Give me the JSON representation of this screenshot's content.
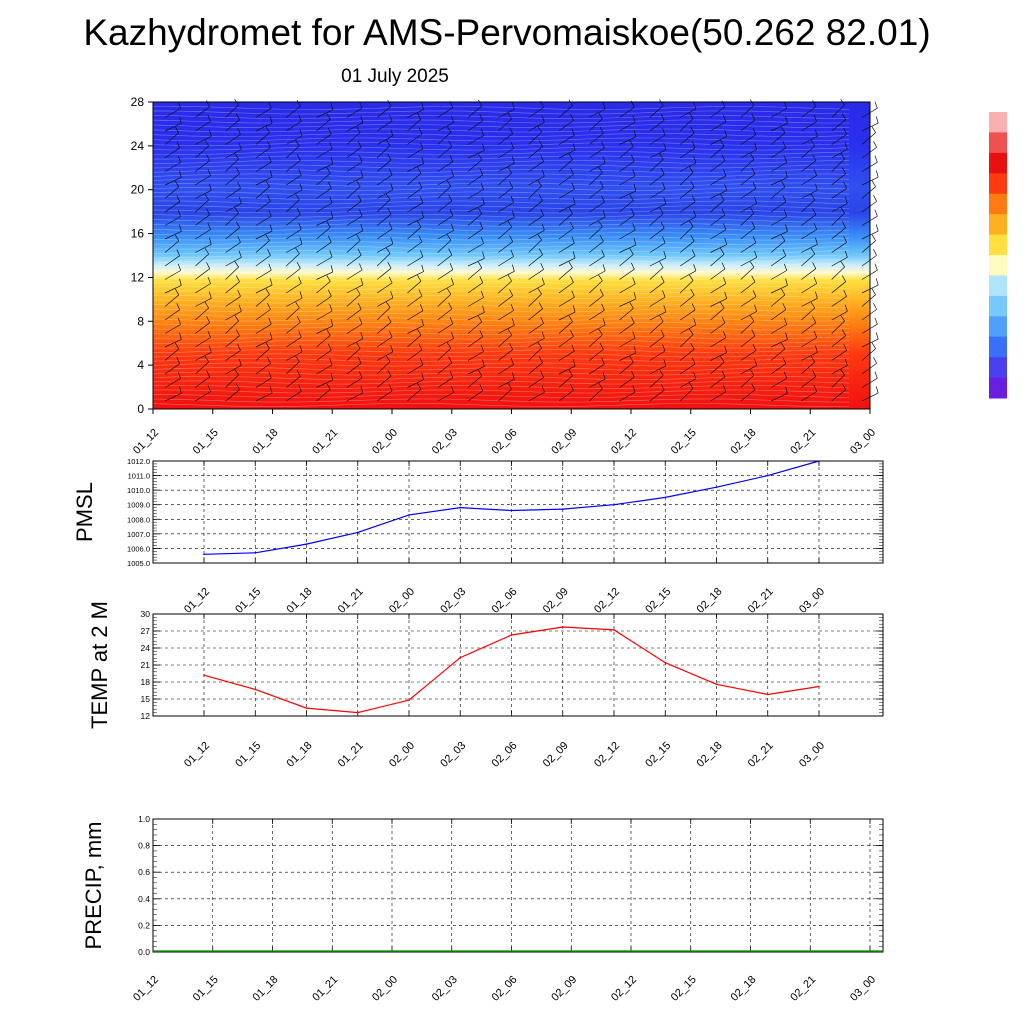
{
  "header": {
    "title": "Kazhydromet for AMS-Pervomaiskoe(50.262 82.01)",
    "date": "01 July 2025"
  },
  "chart_data": [
    {
      "type": "heatmap",
      "panel": "cross-section",
      "x_categories": [
        "01_12",
        "01_15",
        "01_18",
        "01_21",
        "02_00",
        "02_03",
        "02_06",
        "02_09",
        "02_12",
        "02_15",
        "02_18",
        "02_21",
        "03_00"
      ],
      "y_ticks": [
        0,
        4,
        8,
        12,
        16,
        20,
        24,
        28
      ],
      "ylim": [
        0,
        28
      ],
      "colorbar": {
        "position": "right",
        "colors": [
          "#6a1fe0",
          "#4a40f0",
          "#3a70f8",
          "#50a0fa",
          "#78c8fc",
          "#b0e4fc",
          "#fffac0",
          "#ffe040",
          "#ffb020",
          "#ff7a10",
          "#ff3a10",
          "#e81010",
          "#f05050",
          "#f8b0b0"
        ]
      },
      "wind_barbs": true
    },
    {
      "type": "line",
      "panel": "pmsl",
      "ylabel": "PMSL",
      "categories": [
        "01_12",
        "01_15",
        "01_18",
        "01_21",
        "02_00",
        "02_03",
        "02_06",
        "02_09",
        "02_12",
        "02_15",
        "02_18",
        "02_21",
        "03_00"
      ],
      "values": [
        1005.6,
        1005.7,
        1006.3,
        1007.1,
        1008.3,
        1008.8,
        1008.6,
        1008.7,
        1009.0,
        1009.5,
        1010.2,
        1011.0,
        1012.0
      ],
      "y_ticks": [
        "1005.0",
        "1006.0",
        "1007.0",
        "1008.0",
        "1009.0",
        "1010.0",
        "1011.0",
        "1012.0"
      ],
      "ylim": [
        1005,
        1012
      ],
      "color": "#0000ff",
      "grid": true
    },
    {
      "type": "line",
      "panel": "temp",
      "ylabel": "TEMP at 2 M",
      "categories": [
        "01_12",
        "01_15",
        "01_18",
        "01_21",
        "02_00",
        "02_03",
        "02_06",
        "02_09",
        "02_12",
        "02_15",
        "02_18",
        "02_21",
        "03_00"
      ],
      "values": [
        19.2,
        16.7,
        13.4,
        12.6,
        14.8,
        22.3,
        26.3,
        27.7,
        27.2,
        21.4,
        17.6,
        15.8,
        17.2
      ],
      "y_ticks": [
        "12",
        "15",
        "18",
        "21",
        "24",
        "27",
        "30"
      ],
      "ylim": [
        12,
        30
      ],
      "color": "#ff0000",
      "grid": true
    },
    {
      "type": "bar",
      "panel": "precip",
      "ylabel": "PRECIP, mm",
      "categories": [
        "01_12",
        "01_15",
        "01_18",
        "01_21",
        "02_00",
        "02_03",
        "02_06",
        "02_09",
        "02_12",
        "02_15",
        "02_18",
        "02_21",
        "03_00"
      ],
      "values": [
        0,
        0,
        0,
        0,
        0,
        0,
        0,
        0,
        0,
        0,
        0,
        0,
        0
      ],
      "y_ticks": [
        "0.0",
        "0.2",
        "0.4",
        "0.6",
        "0.8",
        "1.0"
      ],
      "ylim": [
        0,
        1
      ],
      "color": "#008000",
      "grid": true
    }
  ]
}
